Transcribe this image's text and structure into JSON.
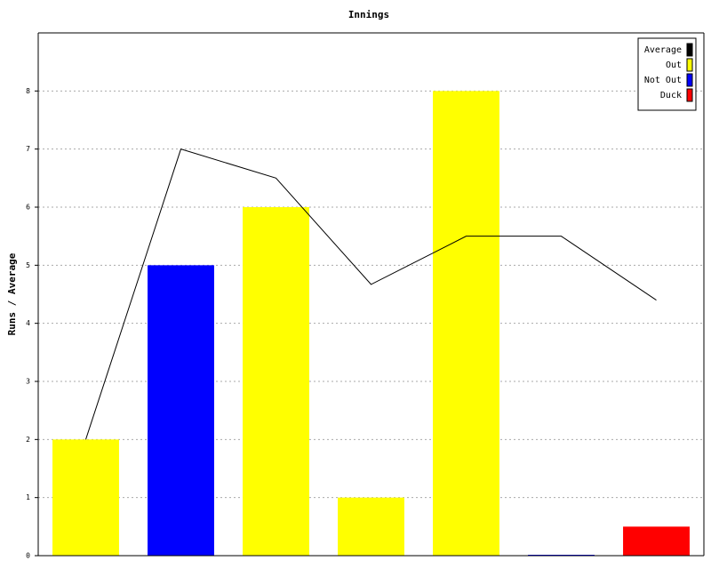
{
  "chart_data": {
    "type": "bar",
    "title": "Innings",
    "y_label": "Runs / Average",
    "categories": [
      null,
      null,
      null,
      null,
      null,
      null,
      null
    ],
    "series": [
      {
        "name": "Average",
        "color": "#000000",
        "type": "line",
        "values": [
          2,
          7,
          6.5,
          4.67,
          5.5,
          5.5,
          4.4
        ]
      },
      {
        "name": "Out",
        "color": "#ffff00",
        "values": [
          2,
          null,
          6,
          1,
          8,
          null,
          null
        ]
      },
      {
        "name": "Not Out",
        "color": "#0000ff",
        "values": [
          null,
          5,
          null,
          null,
          null,
          0,
          null
        ]
      },
      {
        "name": "Duck",
        "color": "#ff0000",
        "values": [
          null,
          null,
          null,
          null,
          null,
          null,
          0.5
        ]
      }
    ],
    "ylim": [
      0,
      9
    ],
    "yticks": [
      0,
      1,
      2,
      3,
      4,
      5,
      6,
      7,
      8
    ],
    "grid": true,
    "legend": "top-right"
  }
}
